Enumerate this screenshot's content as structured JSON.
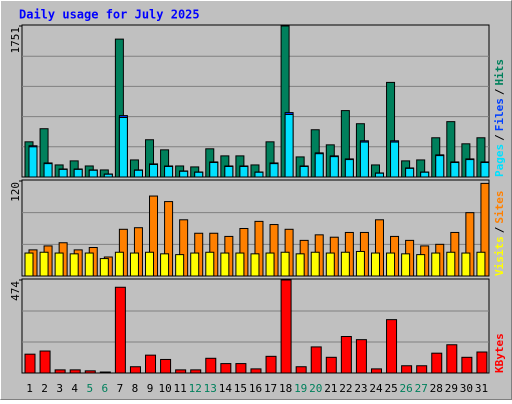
{
  "title": "Daily usage for July 2025",
  "legend_separator": "/",
  "chart_data": [
    {
      "type": "bar",
      "ylim": [
        0,
        1751
      ],
      "yticks": [
        1751
      ],
      "series": [
        {
          "name": "Hits",
          "color": "#00805c",
          "values": [
            408,
            560,
            140,
            187,
            128,
            82,
            1599,
            198,
            432,
            315,
            128,
            117,
            327,
            245,
            245,
            140,
            408,
            1751,
            233,
            548,
            373,
            770,
            618,
            140,
            1097,
            187,
            198,
            455,
            642,
            385,
            455
          ]
        },
        {
          "name": "Files",
          "color": "#0040ff",
          "values": [
            362,
            163,
            93,
            93,
            82,
            35,
            712,
            82,
            152,
            128,
            70,
            58,
            175,
            128,
            128,
            58,
            163,
            747,
            128,
            280,
            245,
            210,
            420,
            47,
            420,
            105,
            58,
            257,
            175,
            210,
            175
          ]
        },
        {
          "name": "Pages",
          "color": "#00e0ff",
          "values": [
            350,
            155,
            88,
            88,
            78,
            32,
            690,
            78,
            145,
            122,
            66,
            55,
            168,
            122,
            122,
            55,
            155,
            725,
            122,
            270,
            236,
            202,
            405,
            44,
            405,
            100,
            55,
            248,
            168,
            202,
            168
          ]
        }
      ]
    },
    {
      "type": "bar",
      "ylim": [
        0,
        120
      ],
      "yticks": [
        120
      ],
      "series": [
        {
          "name": "Sites",
          "color": "#ff8000",
          "values": [
            33,
            38,
            42,
            33,
            36,
            24,
            59,
            61,
            101,
            94,
            71,
            54,
            54,
            50,
            60,
            69,
            65,
            59,
            45,
            52,
            49,
            55,
            55,
            71,
            50,
            45,
            38,
            40,
            55,
            80,
            117
          ]
        },
        {
          "name": "Visits",
          "color": "#ffff00",
          "values": [
            29,
            30,
            29,
            28,
            29,
            22,
            30,
            29,
            30,
            28,
            27,
            29,
            30,
            29,
            29,
            28,
            29,
            30,
            28,
            30,
            29,
            30,
            31,
            29,
            29,
            28,
            27,
            29,
            30,
            29,
            30
          ]
        }
      ]
    },
    {
      "type": "bar",
      "ylim": [
        0,
        474
      ],
      "yticks": [
        474
      ],
      "categories": [
        "1",
        "2",
        "3",
        "4",
        "5",
        "6",
        "7",
        "8",
        "9",
        "10",
        "11",
        "12",
        "13",
        "14",
        "15",
        "16",
        "17",
        "18",
        "19",
        "20",
        "21",
        "22",
        "23",
        "24",
        "25",
        "26",
        "27",
        "28",
        "29",
        "30",
        "31"
      ],
      "category_colors": [
        "#000000",
        "#000000",
        "#000000",
        "#000000",
        "#00805c",
        "#00805c",
        "#000000",
        "#000000",
        "#000000",
        "#000000",
        "#000000",
        "#00805c",
        "#00805c",
        "#000000",
        "#000000",
        "#000000",
        "#000000",
        "#000000",
        "#00805c",
        "#00805c",
        "#000000",
        "#000000",
        "#000000",
        "#000000",
        "#000000",
        "#00805c",
        "#00805c",
        "#000000",
        "#000000",
        "#000000",
        "#000000"
      ],
      "series": [
        {
          "name": "KBytes",
          "color": "#ff0000",
          "values": [
            96,
            112,
            16,
            16,
            11,
            5,
            437,
            32,
            91,
            69,
            16,
            16,
            75,
            48,
            48,
            21,
            85,
            474,
            32,
            133,
            80,
            186,
            170,
            21,
            272,
            37,
            37,
            101,
            144,
            80,
            107
          ]
        }
      ]
    }
  ]
}
